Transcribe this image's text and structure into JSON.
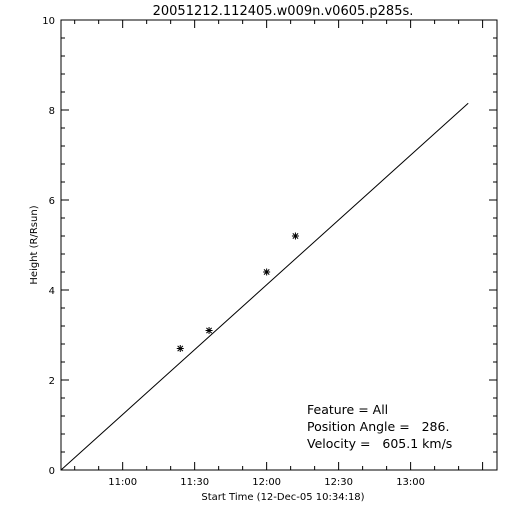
{
  "chart_data": {
    "type": "scatter",
    "title": "20051212.112405.w009n.v0605.p285s.",
    "xlabel": "Start Time (12-Dec-05 10:34:18)",
    "ylabel": "Height (R/Rsun)",
    "x_unit": "time of day (HH:MM)",
    "xlim": [
      "10:34:18",
      "13:36"
    ],
    "ylim": [
      0,
      10
    ],
    "x_ticks": [
      "11:00",
      "11:30",
      "12:00",
      "12:30",
      "13:00"
    ],
    "y_ticks": [
      0,
      2,
      4,
      6,
      8,
      10
    ],
    "grid": false,
    "points": [
      {
        "x": "11:24",
        "y": 2.7
      },
      {
        "x": "11:36",
        "y": 3.1
      },
      {
        "x": "12:00",
        "y": 4.4
      },
      {
        "x": "12:12",
        "y": 5.2
      }
    ],
    "fit_line": [
      {
        "x": "10:34:18",
        "y": 0.0
      },
      {
        "x": "13:24",
        "y": 8.15
      }
    ],
    "annotations": [
      "Feature = All",
      "Position Angle =   286.",
      "Velocity =   605.1 km/s"
    ],
    "colors": {
      "axes": "#000000",
      "line": "#000000",
      "marker": "#000000",
      "background": "#ffffff"
    }
  }
}
